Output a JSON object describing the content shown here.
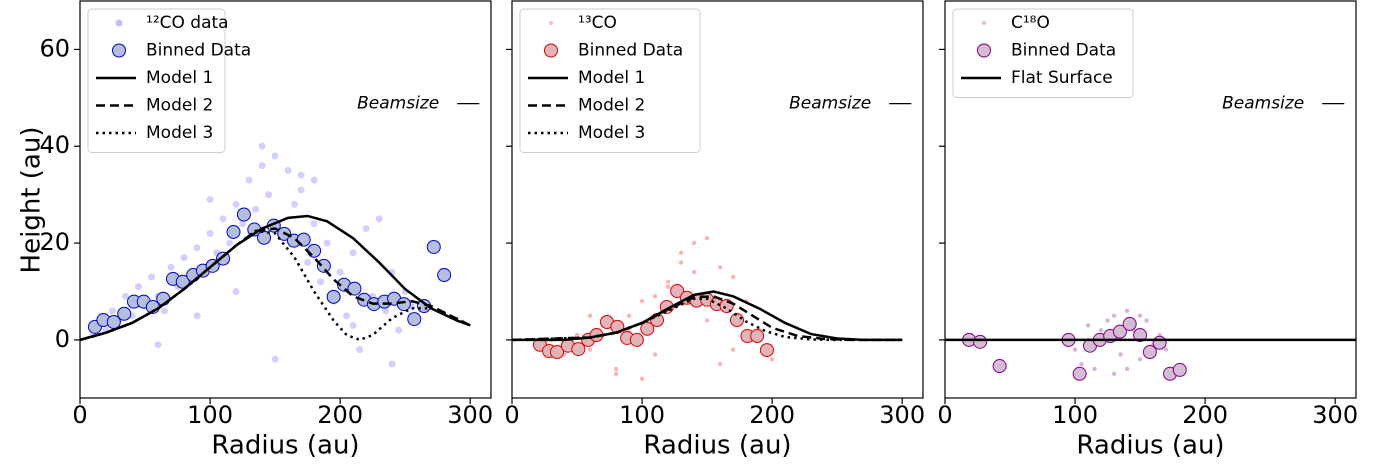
{
  "chart_data": [
    {
      "type": "scatter",
      "xlabel": "Radius (au)",
      "ylabel": "Height (au)",
      "xlim": [
        0,
        316
      ],
      "ylim": [
        -12,
        70
      ],
      "xticks": [
        0,
        100,
        200,
        300
      ],
      "yticks": [
        0,
        20,
        40,
        60
      ],
      "show_ytick_labels": true,
      "beam": {
        "label": "Beamsize",
        "x": [
          290,
          307
        ],
        "y": 48.8
      },
      "series": [
        {
          "name": "¹²CO data",
          "kind": "raw",
          "color": "#0000ff",
          "x": [
            10,
            15,
            20,
            25,
            30,
            35,
            40,
            45,
            50,
            55,
            60,
            65,
            70,
            75,
            80,
            85,
            90,
            95,
            100,
            105,
            110,
            115,
            120,
            125,
            130,
            135,
            140,
            145,
            150,
            155,
            160,
            165,
            170,
            175,
            180,
            185,
            190,
            195,
            200,
            205,
            210,
            215,
            220,
            225,
            230,
            235,
            240,
            245,
            250,
            255,
            60,
            90,
            120,
            150,
            180,
            210,
            240,
            100,
            140,
            170
          ],
          "values": [
            1,
            3,
            2,
            6,
            4,
            9,
            5,
            11,
            7,
            13,
            9,
            6,
            15,
            11,
            17,
            12,
            19,
            14,
            22,
            18,
            25,
            20,
            28,
            24,
            33,
            27,
            36,
            30,
            38,
            22,
            35,
            28,
            31,
            16,
            24,
            12,
            20,
            8,
            14,
            5,
            18,
            -2,
            23,
            9,
            25,
            6,
            14,
            2,
            10,
            7,
            -1,
            5,
            10,
            -4,
            33,
            3,
            -5,
            29,
            40,
            34
          ]
        },
        {
          "name": "Binned Data",
          "kind": "binned",
          "color": "#b4bfdc",
          "edgecolor": "#0000cc",
          "x": [
            11.5,
            18,
            26,
            34,
            41.5,
            49,
            56,
            64,
            71.5,
            79,
            87,
            94.5,
            102,
            110,
            118,
            126,
            134,
            141.5,
            149,
            157,
            164.5,
            172,
            180,
            187.5,
            195,
            203,
            211,
            218.5,
            226,
            234,
            241.5,
            249,
            257,
            264.5,
            272,
            280
          ],
          "values": [
            2.7,
            4.1,
            3.7,
            5.4,
            7.9,
            7.9,
            6.8,
            8.5,
            12.6,
            12,
            13.4,
            14.3,
            15.3,
            16.8,
            22.3,
            25.9,
            22.8,
            21.1,
            23.6,
            21.9,
            20.5,
            20.7,
            18.4,
            15.3,
            8.9,
            11.4,
            10.6,
            8.3,
            7.4,
            7.9,
            8.5,
            7.4,
            4.3,
            7,
            19.2,
            13.4
          ]
        },
        {
          "name": "Model 1",
          "kind": "line",
          "linestyle": "solid",
          "color": "#000000",
          "x": [
            0,
            20,
            40,
            60,
            80,
            100,
            120,
            140,
            160,
            175,
            190,
            210,
            230,
            250,
            270,
            290,
            300
          ],
          "values": [
            0,
            1.5,
            3.5,
            6.5,
            10.5,
            15,
            19.5,
            23,
            25.2,
            25.6,
            24.5,
            21,
            16,
            10.5,
            6.5,
            4,
            3
          ]
        },
        {
          "name": "Model 2",
          "kind": "line",
          "linestyle": "dashed",
          "color": "#000000",
          "x": [
            0,
            20,
            40,
            60,
            80,
            100,
            120,
            135,
            150,
            165,
            180,
            195,
            210,
            225,
            240,
            255,
            270,
            285,
            300
          ],
          "values": [
            0,
            1.5,
            3.5,
            6.5,
            10.5,
            15,
            19.5,
            22.5,
            23,
            21,
            17,
            12.5,
            9,
            7.5,
            7.5,
            8,
            7,
            5,
            3
          ]
        },
        {
          "name": "Model 3",
          "kind": "line",
          "linestyle": "dotted",
          "color": "#000000",
          "x": [
            0,
            20,
            40,
            60,
            80,
            100,
            120,
            135,
            150,
            165,
            180,
            195,
            205,
            215,
            225,
            240,
            255,
            270,
            285,
            300
          ],
          "values": [
            0,
            1.5,
            3.5,
            6.5,
            10.5,
            15,
            19.5,
            22.5,
            22,
            17,
            10,
            4,
            1,
            0,
            1,
            4.5,
            6.5,
            6.5,
            5,
            3
          ]
        }
      ]
    },
    {
      "type": "scatter",
      "xlabel": "Radius (au)",
      "xlim": [
        0,
        316
      ],
      "ylim": [
        -12,
        70
      ],
      "xticks": [
        0,
        100,
        200,
        300
      ],
      "yticks": [
        0,
        20,
        40,
        60
      ],
      "show_ytick_labels": false,
      "beam": {
        "label": "Beamsize",
        "x": [
          290,
          307
        ],
        "y": 48.8
      },
      "series": [
        {
          "name": "¹³CO",
          "kind": "raw",
          "color": "#ff0000",
          "x": [
            20,
            30,
            40,
            50,
            60,
            70,
            80,
            90,
            100,
            110,
            120,
            130,
            140,
            150,
            160,
            170,
            180,
            190,
            200,
            60,
            80,
            100,
            120,
            140,
            160,
            90,
            110,
            130,
            150,
            170
          ],
          "values": [
            -1,
            0,
            -3,
            1,
            -2,
            3,
            -6,
            5,
            -8,
            9,
            12,
            16,
            20,
            21,
            15,
            13,
            8,
            2,
            -4,
            5,
            -7,
            8,
            11,
            14,
            -5,
            2,
            -3,
            18,
            4,
            -2
          ]
        },
        {
          "name": "Binned Data",
          "kind": "binned",
          "color": "#e0b4b8",
          "edgecolor": "#dd0000",
          "x": [
            21.5,
            28.5,
            34.6,
            43,
            51,
            58.5,
            65,
            73,
            81,
            88.5,
            96,
            104,
            111.5,
            119,
            127,
            134.5,
            142,
            150,
            157.5,
            165,
            173,
            181,
            188.5,
            196
          ],
          "values": [
            -1,
            -2.3,
            -2.5,
            -1.2,
            -1.9,
            0,
            1,
            3.7,
            2.7,
            0.4,
            0,
            2.3,
            4.1,
            6.8,
            10.1,
            8.7,
            8.1,
            8.3,
            7.4,
            7,
            4.1,
            0.8,
            0.8,
            -2.1
          ]
        },
        {
          "name": "Model 1",
          "kind": "line",
          "linestyle": "solid",
          "color": "#000000",
          "x": [
            0,
            40,
            60,
            80,
            100,
            120,
            140,
            155,
            170,
            190,
            210,
            230,
            250,
            270,
            300
          ],
          "values": [
            0,
            0,
            0.5,
            1.5,
            3.5,
            6.5,
            9.3,
            10,
            9,
            6.5,
            3.5,
            1.2,
            0.3,
            0,
            0
          ]
        },
        {
          "name": "Model 2",
          "kind": "line",
          "linestyle": "dashed",
          "color": "#000000",
          "x": [
            0,
            60,
            80,
            100,
            120,
            140,
            155,
            170,
            185,
            200,
            220,
            240,
            260,
            300
          ],
          "values": [
            0,
            0.5,
            1.5,
            3.5,
            6.3,
            8.8,
            9,
            7.5,
            5,
            2.5,
            0.8,
            0.2,
            0,
            0
          ]
        },
        {
          "name": "Model 3",
          "kind": "line",
          "linestyle": "dotted",
          "color": "#000000",
          "x": [
            0,
            60,
            80,
            100,
            120,
            140,
            150,
            165,
            180,
            195,
            210,
            230,
            250,
            300
          ],
          "values": [
            0,
            0.5,
            1.5,
            3.5,
            6,
            8.5,
            8.5,
            6.5,
            3.8,
            1.8,
            0.6,
            0.1,
            0,
            0
          ]
        }
      ]
    },
    {
      "type": "scatter",
      "xlabel": "Radius (au)",
      "xlim": [
        0,
        316
      ],
      "ylim": [
        -12,
        70
      ],
      "xticks": [
        0,
        100,
        200,
        300
      ],
      "yticks": [
        0,
        20,
        40,
        60
      ],
      "show_ytick_labels": false,
      "beam": {
        "label": "Beamsize",
        "x": [
          290,
          307
        ],
        "y": 48.8
      },
      "series": [
        {
          "name": "C¹⁸O",
          "kind": "raw",
          "color": "#800080",
          "x": [
            100,
            105,
            110,
            115,
            120,
            125,
            130,
            135,
            140,
            145,
            150,
            155,
            160,
            165,
            170,
            110,
            130,
            150,
            140,
            120
          ],
          "values": [
            -2,
            -5,
            3,
            -6,
            1,
            4,
            5,
            -3,
            6,
            2,
            -4,
            4,
            -1,
            1,
            -2,
            0,
            -7,
            5,
            -6,
            2
          ]
        },
        {
          "name": "Binned Data",
          "kind": "binned",
          "color": "#d4bcd4",
          "edgecolor": "#800080",
          "x": [
            18.5,
            27,
            42,
            95,
            103.5,
            111.5,
            119,
            127,
            134.5,
            142,
            150,
            157.5,
            165,
            173,
            180.5
          ],
          "values": [
            0,
            -0.4,
            -5.4,
            0,
            -7,
            -1.2,
            0,
            0.8,
            1.7,
            3.3,
            1,
            -2.5,
            -0.6,
            -7,
            -6.2
          ]
        },
        {
          "name": "Flat Surface",
          "kind": "line",
          "linestyle": "solid",
          "color": "#000000",
          "x": [
            0,
            316
          ],
          "values": [
            0,
            0
          ]
        }
      ]
    }
  ]
}
